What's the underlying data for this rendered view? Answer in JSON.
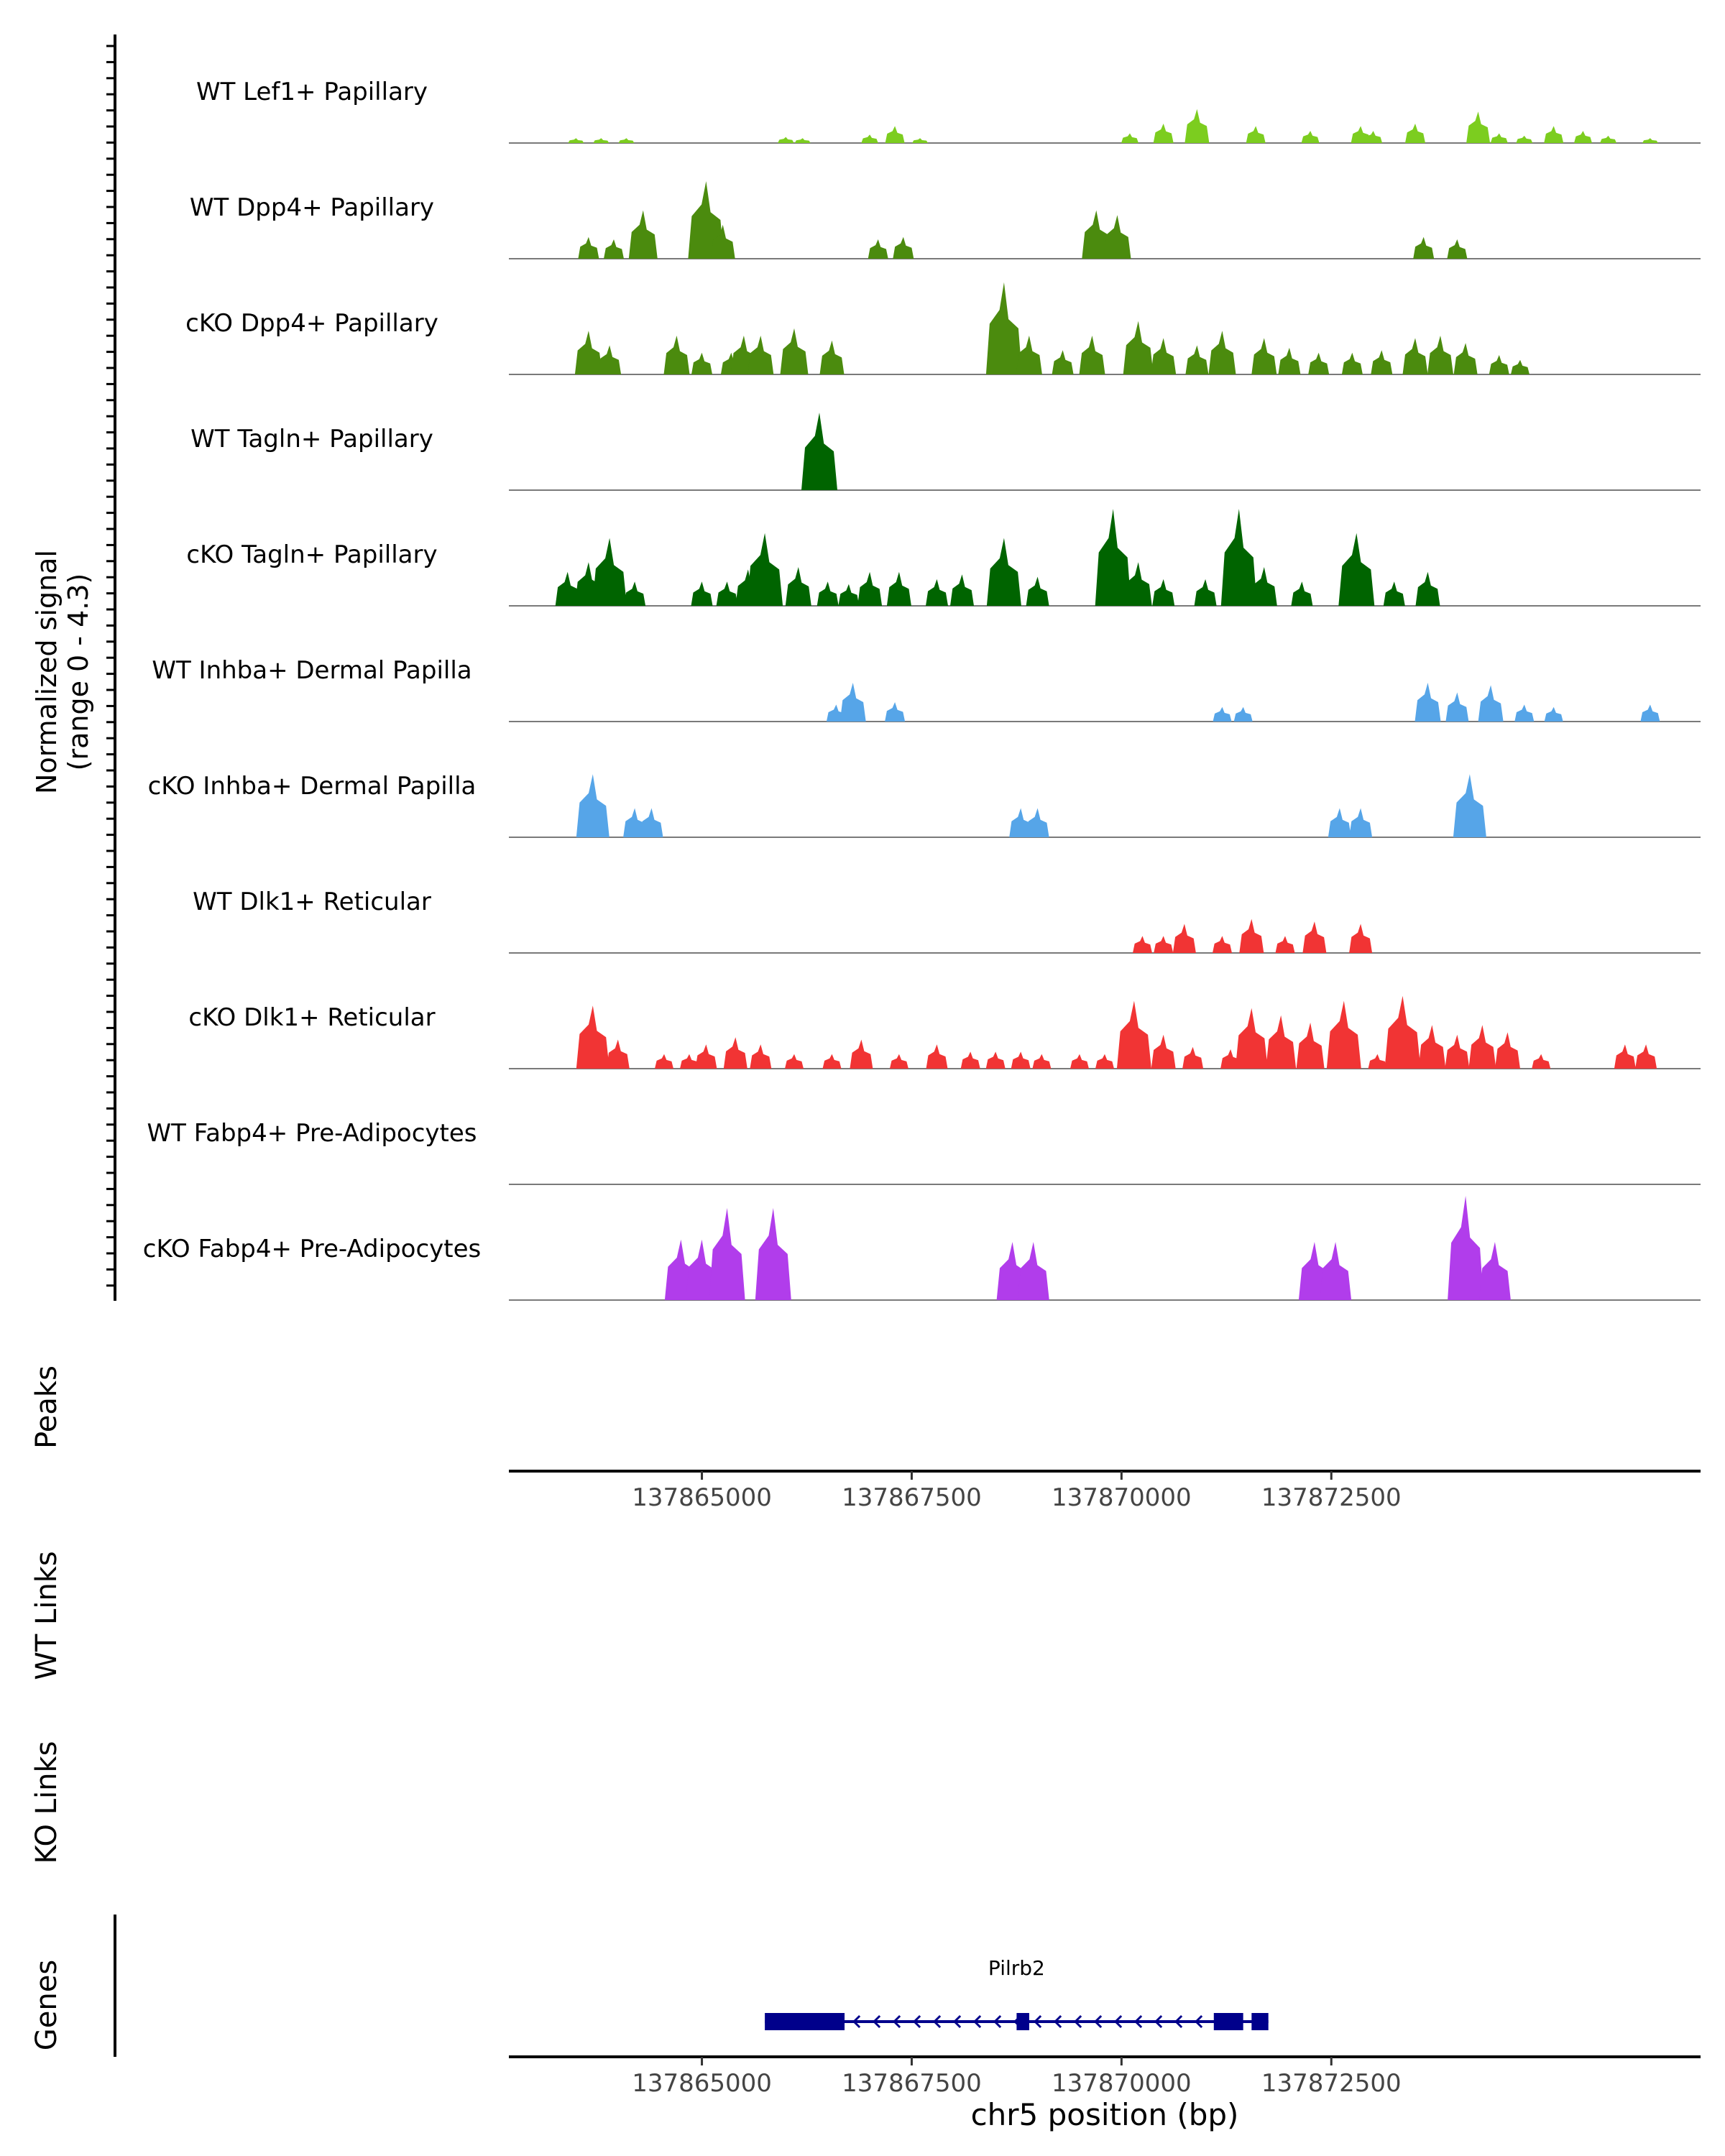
{
  "chart_data": {
    "type": "area",
    "title": "",
    "ylabel": "Normalized signal",
    "ylabel_sub": "(range 0 - 4.3)",
    "ylim": [
      0,
      4.3
    ],
    "xlim": [
      137862700,
      137876900
    ],
    "xlabel": "chr5 position (bp)",
    "x_ticks": [
      137865000,
      137867500,
      137870000,
      137872500
    ],
    "x_tick_labels": [
      "137865000",
      "137867500",
      "137870000",
      "137872500"
    ],
    "track_labels": {
      "peaks": "Peaks",
      "wt_links": "WT Links",
      "ko_links": "KO Links",
      "genes": "Genes"
    },
    "series": [
      {
        "name": "WT Lef1+ Papillary",
        "color": "#7CCD1F",
        "peaks": [
          [
            137863500,
            0.2
          ],
          [
            137863800,
            0.2
          ],
          [
            137864100,
            0.2
          ],
          [
            137866000,
            0.25
          ],
          [
            137866200,
            0.2
          ],
          [
            137867000,
            0.35
          ],
          [
            137867300,
            0.7
          ],
          [
            137867600,
            0.2
          ],
          [
            137870100,
            0.4
          ],
          [
            137870500,
            0.8
          ],
          [
            137870900,
            1.4
          ],
          [
            137871600,
            0.7
          ],
          [
            137872250,
            0.5
          ],
          [
            137872850,
            0.7
          ],
          [
            137873000,
            0.5
          ],
          [
            137873500,
            0.8
          ],
          [
            137874250,
            1.3
          ],
          [
            137874500,
            0.4
          ],
          [
            137874800,
            0.3
          ],
          [
            137875150,
            0.7
          ],
          [
            137875500,
            0.5
          ],
          [
            137875800,
            0.3
          ],
          [
            137876300,
            0.2
          ]
        ]
      },
      {
        "name": "WT Dpp4+ Papillary",
        "color": "#4B8B0E",
        "peaks": [
          [
            137863650,
            0.9
          ],
          [
            137863950,
            0.8
          ],
          [
            137864300,
            2.0
          ],
          [
            137865050,
            3.2
          ],
          [
            137865250,
            1.4
          ],
          [
            137867100,
            0.8
          ],
          [
            137867400,
            0.9
          ],
          [
            137869700,
            2.0
          ],
          [
            137869950,
            1.8
          ],
          [
            137873600,
            0.9
          ],
          [
            137874000,
            0.8
          ]
        ]
      },
      {
        "name": "cKO Dpp4+ Papillary",
        "color": "#4B8B0E",
        "peaks": [
          [
            137863650,
            1.8
          ],
          [
            137863900,
            1.2
          ],
          [
            137864700,
            1.6
          ],
          [
            137865000,
            0.9
          ],
          [
            137865350,
            0.9
          ],
          [
            137865500,
            1.6
          ],
          [
            137865700,
            1.6
          ],
          [
            137866100,
            1.9
          ],
          [
            137866550,
            1.4
          ],
          [
            137868600,
            3.8
          ],
          [
            137868900,
            1.6
          ],
          [
            137869300,
            1.0
          ],
          [
            137869650,
            1.6
          ],
          [
            137870200,
            2.2
          ],
          [
            137870500,
            1.5
          ],
          [
            137870900,
            1.2
          ],
          [
            137871200,
            1.8
          ],
          [
            137871700,
            1.5
          ],
          [
            137872000,
            1.1
          ],
          [
            137872350,
            0.9
          ],
          [
            137872750,
            0.9
          ],
          [
            137873100,
            1.0
          ],
          [
            137873500,
            1.5
          ],
          [
            137873800,
            1.6
          ],
          [
            137874100,
            1.3
          ],
          [
            137874500,
            0.8
          ],
          [
            137874750,
            0.6
          ]
        ]
      },
      {
        "name": "WT Tagln+ Papillary",
        "color": "#006400",
        "peaks": [
          [
            137866400,
            3.2
          ]
        ]
      },
      {
        "name": "cKO Tagln+ Papillary",
        "color": "#006400",
        "peaks": [
          [
            137863400,
            1.4
          ],
          [
            137863650,
            1.8
          ],
          [
            137863900,
            2.8
          ],
          [
            137864200,
            1.0
          ],
          [
            137865000,
            1.0
          ],
          [
            137865300,
            1.0
          ],
          [
            137865550,
            1.5
          ],
          [
            137865750,
            3.0
          ],
          [
            137866150,
            1.6
          ],
          [
            137866500,
            1.0
          ],
          [
            137866750,
            0.9
          ],
          [
            137867000,
            1.4
          ],
          [
            137867350,
            1.4
          ],
          [
            137867800,
            1.1
          ],
          [
            137868100,
            1.3
          ],
          [
            137868600,
            2.8
          ],
          [
            137869000,
            1.2
          ],
          [
            137869900,
            4.0
          ],
          [
            137870200,
            1.8
          ],
          [
            137870500,
            1.1
          ],
          [
            137871000,
            1.1
          ],
          [
            137871400,
            4.0
          ],
          [
            137871700,
            1.6
          ],
          [
            137872150,
            1.0
          ],
          [
            137872800,
            3.0
          ],
          [
            137873250,
            1.0
          ],
          [
            137873650,
            1.4
          ]
        ]
      },
      {
        "name": "WT Inhba+ Dermal Papilla",
        "color": "#56A5E8",
        "peaks": [
          [
            137866600,
            0.7
          ],
          [
            137866800,
            1.6
          ],
          [
            137867300,
            0.8
          ],
          [
            137871200,
            0.6
          ],
          [
            137871450,
            0.6
          ],
          [
            137873650,
            1.6
          ],
          [
            137874000,
            1.2
          ],
          [
            137874400,
            1.5
          ],
          [
            137874800,
            0.7
          ],
          [
            137875150,
            0.6
          ],
          [
            137876300,
            0.7
          ]
        ]
      },
      {
        "name": "cKO Inhba+ Dermal Papilla",
        "color": "#56A5E8",
        "peaks": [
          [
            137863700,
            2.6
          ],
          [
            137864200,
            1.2
          ],
          [
            137864400,
            1.2
          ],
          [
            137868800,
            1.2
          ],
          [
            137869000,
            1.2
          ],
          [
            137872600,
            1.2
          ],
          [
            137872850,
            1.2
          ],
          [
            137874150,
            2.6
          ]
        ]
      },
      {
        "name": "WT Dlk1+ Reticular",
        "color": "#F13434",
        "peaks": [
          [
            137870250,
            0.7
          ],
          [
            137870500,
            0.7
          ],
          [
            137870750,
            1.2
          ],
          [
            137871200,
            0.7
          ],
          [
            137871550,
            1.4
          ],
          [
            137871950,
            0.7
          ],
          [
            137872300,
            1.3
          ],
          [
            137872850,
            1.2
          ]
        ]
      },
      {
        "name": "cKO Dlk1+ Reticular",
        "color": "#F13434",
        "peaks": [
          [
            137863700,
            2.6
          ],
          [
            137864000,
            1.2
          ],
          [
            137864550,
            0.6
          ],
          [
            137864850,
            0.6
          ],
          [
            137865050,
            1.0
          ],
          [
            137865400,
            1.3
          ],
          [
            137865700,
            1.0
          ],
          [
            137866100,
            0.6
          ],
          [
            137866550,
            0.6
          ],
          [
            137866900,
            1.2
          ],
          [
            137867350,
            0.6
          ],
          [
            137867800,
            1.0
          ],
          [
            137868200,
            0.7
          ],
          [
            137868500,
            0.7
          ],
          [
            137868800,
            0.7
          ],
          [
            137869050,
            0.6
          ],
          [
            137869500,
            0.6
          ],
          [
            137869800,
            0.6
          ],
          [
            137870150,
            2.8
          ],
          [
            137870500,
            1.4
          ],
          [
            137870850,
            0.9
          ],
          [
            137871300,
            0.8
          ],
          [
            137871550,
            2.5
          ],
          [
            137871900,
            2.2
          ],
          [
            137872250,
            1.9
          ],
          [
            137872650,
            2.8
          ],
          [
            137873050,
            0.6
          ],
          [
            137873350,
            3.0
          ],
          [
            137873700,
            1.8
          ],
          [
            137874000,
            1.4
          ],
          [
            137874300,
            1.8
          ],
          [
            137874600,
            1.5
          ],
          [
            137875000,
            0.6
          ],
          [
            137876000,
            1.0
          ],
          [
            137876250,
            1.0
          ]
        ]
      },
      {
        "name": "WT Fabp4+ Pre-Adipocytes",
        "color": "#B13DEB",
        "peaks": []
      },
      {
        "name": "cKO Fabp4+ Pre-Adipocytes",
        "color": "#B13DEB",
        "peaks": [
          [
            137864750,
            2.5
          ],
          [
            137865000,
            2.5
          ],
          [
            137865300,
            3.8
          ],
          [
            137865850,
            3.8
          ],
          [
            137868700,
            2.4
          ],
          [
            137868950,
            2.4
          ],
          [
            137872300,
            2.4
          ],
          [
            137872550,
            2.4
          ],
          [
            137874100,
            4.3
          ],
          [
            137874450,
            2.4
          ]
        ]
      }
    ],
    "genes": [
      {
        "name": "Pilrb2",
        "strand": "-",
        "start": 137865750,
        "end": 137871750,
        "exons": [
          [
            137865750,
            137866700
          ],
          [
            137868750,
            137868900
          ],
          [
            137871100,
            137871450
          ],
          [
            137871550,
            137871750
          ]
        ]
      }
    ]
  }
}
